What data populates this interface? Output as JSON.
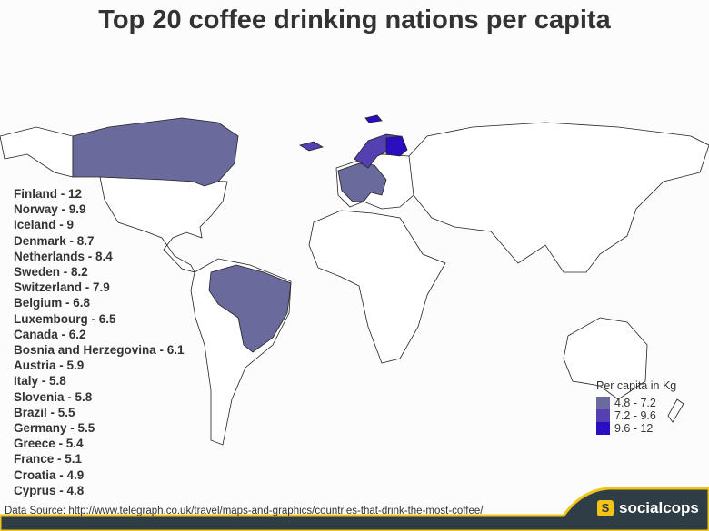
{
  "title": "Top 20 coffee drinking nations per capita",
  "countries": [
    "Finland - 12",
    "Norway - 9.9",
    "Iceland - 9",
    "Denmark - 8.7",
    "Netherlands - 8.4",
    "Sweden - 8.2",
    "Switzerland - 7.9",
    "Belgium - 6.8",
    "Luxembourg - 6.5",
    "Canada - 6.2",
    "Bosnia and Herzegovina - 6.1",
    "Austria - 5.9",
    "Italy - 5.8",
    "Slovenia - 5.8",
    "Brazil - 5.5",
    "Germany - 5.5",
    "Greece - 5.4",
    "France - 5.1",
    "Croatia - 4.9",
    "Cyprus - 4.8"
  ],
  "legend": {
    "title": "Per capita in Kg",
    "bins": [
      {
        "label": "4.8 - 7.2",
        "color": "#6a6a9c"
      },
      {
        "label": "7.2 - 9.6",
        "color": "#5440b0"
      },
      {
        "label": "9.6 - 12",
        "color": "#2a0fc2"
      }
    ]
  },
  "source": "Data Source: http://www.telegraph.co.uk/travel/maps-and-graphics/countries-that-drink-the-most-coffee/",
  "brand": {
    "logo_letter": "S",
    "name": "socialcops"
  },
  "colors": {
    "footer": "#2f3e46",
    "footer_accent": "#f2c418"
  }
}
